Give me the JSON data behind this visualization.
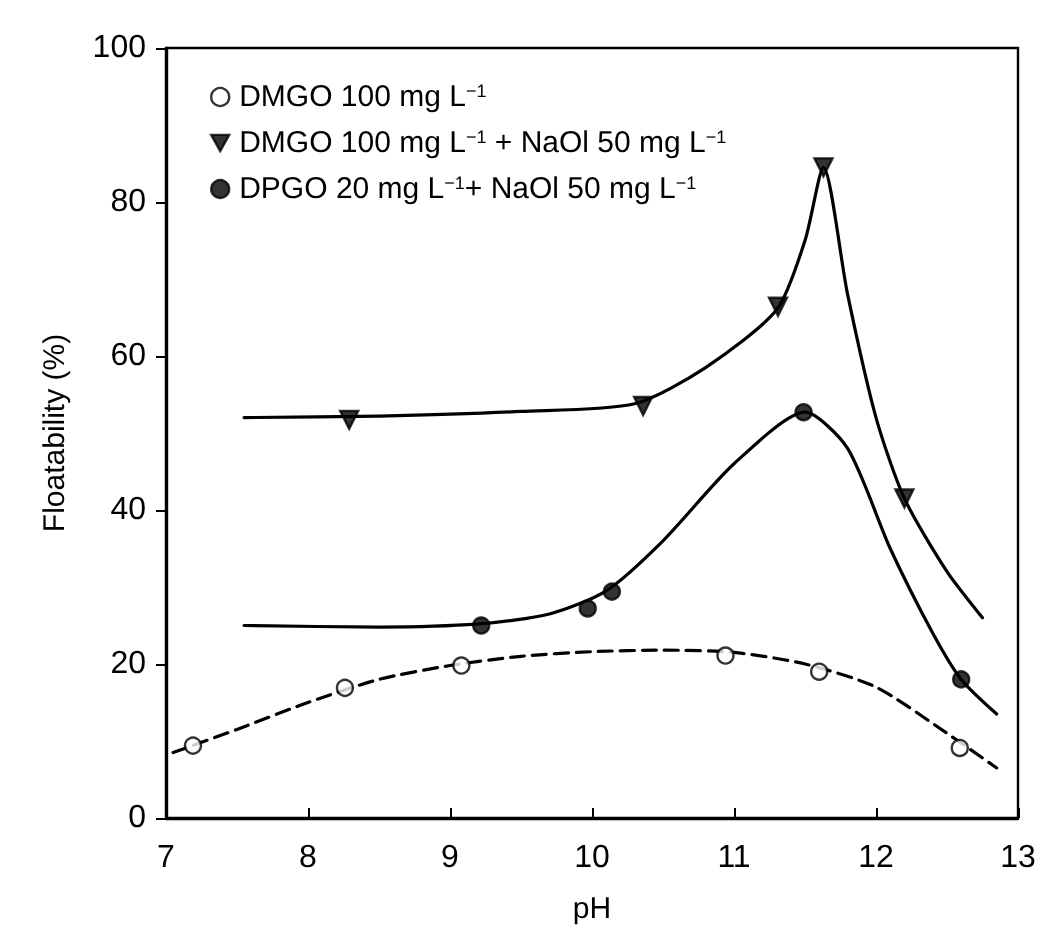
{
  "chart_data": {
    "type": "scatter",
    "xlabel": "pH",
    "ylabel": "Floatability (%)",
    "xlim": [
      7,
      13
    ],
    "xticks": [
      7,
      8,
      9,
      10,
      11,
      12,
      13
    ],
    "ylim": [
      0,
      100
    ],
    "yticks": [
      0,
      20,
      40,
      60,
      80,
      100
    ],
    "grid": false,
    "legend": "top left",
    "series": [
      {
        "name": "DMGO 100 mg L$^{−1}$",
        "marker": "circle",
        "color": "#ffffff",
        "x": [
          7.19,
          8.26,
          9.08,
          10.94,
          11.6,
          12.59
        ],
        "values": [
          9.4,
          16.9,
          19.8,
          21.1,
          19.0,
          9.1
        ]
      },
      {
        "name": "DMGO 100 mg L$^{−1}$ + NaOl 50 mg L$^{−1}$",
        "marker": "triangle",
        "color": "#000000",
        "x": [
          8.29,
          10.36,
          11.31,
          11.63,
          12.2
        ],
        "values": [
          51.7,
          53.5,
          66.4,
          84.5,
          41.5
        ]
      },
      {
        "name": "DPGO 20 mg L$^{−1}$+ NaOl 50 mg L$^{−1}$",
        "marker": "circle",
        "color": "#000000",
        "x": [
          9.22,
          9.97,
          10.14,
          11.49,
          12.6
        ],
        "values": [
          25.0,
          27.2,
          29.4,
          52.7,
          18.0
        ]
      },
      {
        "type": "line",
        "line_style": "dashed",
        "color": "#000000",
        "x": [
          7.05,
          7.5,
          8,
          8.5,
          9,
          9.5,
          10,
          10.5,
          11,
          11.5,
          12,
          12.5,
          12.85
        ],
        "values": [
          8.5,
          11.5,
          15,
          18,
          19.8,
          21,
          21.6,
          21.8,
          21.5,
          20,
          17,
          11,
          6.5
        ]
      },
      {
        "type": "line",
        "line_style": "solid",
        "color": "#000000",
        "x": [
          7.55,
          8.5,
          9.2,
          9.7,
          10.1,
          10.5,
          11,
          11.5,
          11.8,
          12.1,
          12.4,
          12.6,
          12.85
        ],
        "values": [
          25,
          24.8,
          25.2,
          26.5,
          29.5,
          36,
          46,
          52.7,
          48,
          35,
          24,
          18,
          13.5
        ]
      },
      {
        "type": "line",
        "line_style": "solid",
        "color": "#000000",
        "x": [
          7.55,
          8.5,
          9.5,
          10.3,
          10.8,
          11.3,
          11.5,
          11.63,
          11.8,
          12,
          12.2,
          12.5,
          12.75
        ],
        "values": [
          52,
          52.2,
          52.8,
          53.8,
          58.5,
          66,
          75,
          84.5,
          68,
          52,
          41.5,
          32,
          26
        ]
      }
    ]
  }
}
